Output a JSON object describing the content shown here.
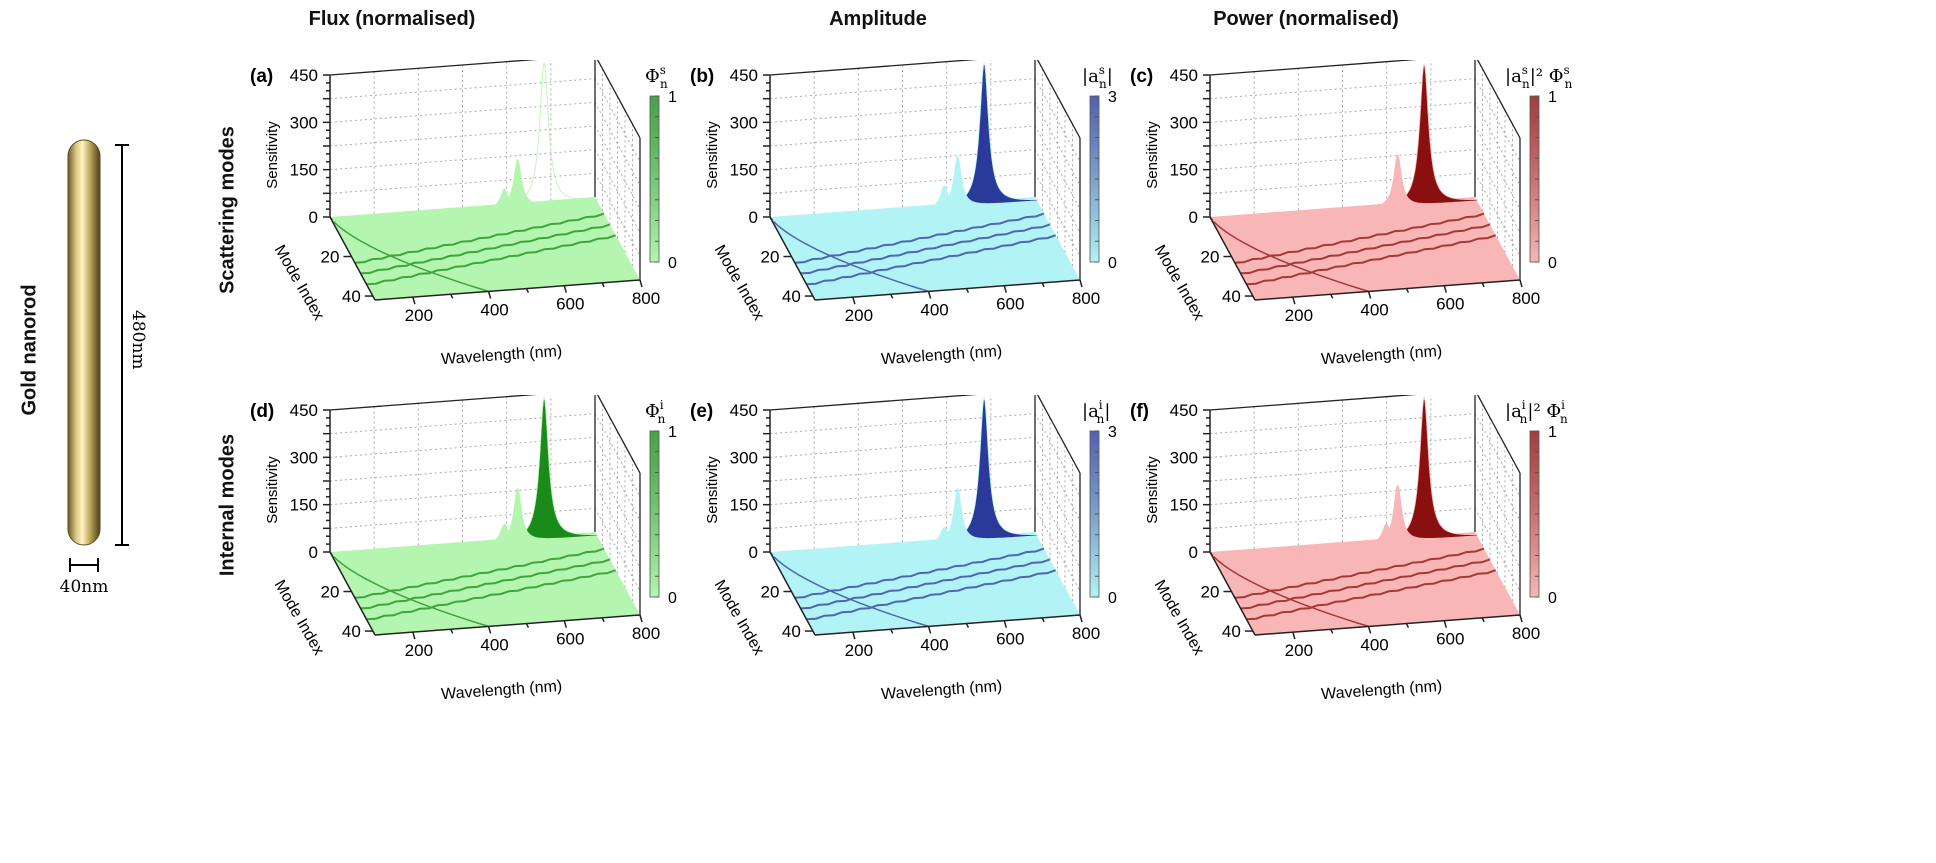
{
  "left": {
    "object_label": "Gold nanorod",
    "length_label": "480nm",
    "width_label": "40nm"
  },
  "columns": [
    "Flux (normalised)",
    "Amplitude",
    "Power (normalised)"
  ],
  "rows": [
    "Scattering modes",
    "Internal modes"
  ],
  "colors": {
    "green": {
      "surface": "#b4f5b0",
      "dark": "#1a8a1a"
    },
    "cyan": {
      "surface": "#b2f3f5",
      "dark": "#2a3a9a"
    },
    "pink": {
      "surface": "#f8b6b6",
      "dark": "#8a0f0f"
    }
  },
  "chart_data": [
    {
      "panel": "(a)",
      "type": "surface",
      "color": "green",
      "zlabel": "Sensitivity",
      "ylabel": "Mode Index",
      "xlabel": "Wavelength (nm)",
      "x_ticks": [
        "200",
        "400",
        "600",
        "800"
      ],
      "y_ticks": [
        "20",
        "40"
      ],
      "z_ticks": [
        "0",
        "150",
        "300",
        "450"
      ],
      "zlim": [
        0,
        450
      ],
      "xlim": [
        100,
        800
      ],
      "ylim": [
        0,
        42
      ],
      "grid": true,
      "colorbar": {
        "base": "Φ",
        "sub": "n",
        "sup": "s",
        "prefix": "",
        "mid": "",
        "ticks": [
          "0",
          "1"
        ]
      },
      "peaks": [
        {
          "wavelength": 660,
          "mode": 2,
          "sensitivity": 450
        },
        {
          "wavelength": 590,
          "mode": 2,
          "sensitivity": 150
        },
        {
          "wavelength": 555,
          "mode": 2,
          "sensitivity": 60
        }
      ]
    },
    {
      "panel": "(b)",
      "type": "surface",
      "color": "cyan",
      "zlabel": "Sensitivity",
      "ylabel": "Mode Index",
      "xlabel": "Wavelength (nm)",
      "x_ticks": [
        "200",
        "400",
        "600",
        "800"
      ],
      "y_ticks": [
        "20",
        "40"
      ],
      "z_ticks": [
        "0",
        "150",
        "300",
        "450"
      ],
      "zlim": [
        0,
        450
      ],
      "xlim": [
        100,
        800
      ],
      "ylim": [
        0,
        42
      ],
      "grid": true,
      "colorbar": {
        "base": "|a",
        "sub": "n",
        "sup": "s",
        "prefix": "",
        "mid": "|",
        "ticks": [
          "0",
          "3"
        ]
      },
      "peaks": [
        {
          "wavelength": 660,
          "mode": 2,
          "sensitivity": 450
        },
        {
          "wavelength": 590,
          "mode": 2,
          "sensitivity": 160
        },
        {
          "wavelength": 555,
          "mode": 2,
          "sensitivity": 70
        }
      ]
    },
    {
      "panel": "(c)",
      "type": "surface",
      "color": "pink",
      "zlabel": "Sensitivity",
      "ylabel": "Mode Index",
      "xlabel": "Wavelength (nm)",
      "x_ticks": [
        "200",
        "400",
        "600",
        "800"
      ],
      "y_ticks": [
        "20",
        "40"
      ],
      "z_ticks": [
        "0",
        "150",
        "300",
        "450"
      ],
      "zlim": [
        0,
        450
      ],
      "xlim": [
        100,
        800
      ],
      "ylim": [
        0,
        42
      ],
      "grid": true,
      "colorbar": {
        "base": "|a",
        "sub": "n",
        "sup": "s",
        "prefix": "",
        "mid": "|² Φ",
        "sub2": "n",
        "sup2": "s",
        "ticks": [
          "0",
          "1"
        ]
      },
      "peaks": [
        {
          "wavelength": 660,
          "mode": 2,
          "sensitivity": 445
        },
        {
          "wavelength": 590,
          "mode": 2,
          "sensitivity": 165
        }
      ]
    },
    {
      "panel": "(d)",
      "type": "surface",
      "color": "green",
      "zlabel": "Sensitivity",
      "ylabel": "Mode Index",
      "xlabel": "Wavelength (nm)",
      "x_ticks": [
        "200",
        "400",
        "600",
        "800"
      ],
      "y_ticks": [
        "20",
        "40"
      ],
      "z_ticks": [
        "0",
        "150",
        "300",
        "450"
      ],
      "zlim": [
        0,
        450
      ],
      "xlim": [
        100,
        800
      ],
      "ylim": [
        0,
        42
      ],
      "grid": true,
      "colorbar": {
        "base": "Φ",
        "sub": "n",
        "sup": "i",
        "prefix": "",
        "mid": "",
        "ticks": [
          "0",
          "1"
        ]
      },
      "peaks": [
        {
          "wavelength": 660,
          "mode": 2,
          "sensitivity": 450
        },
        {
          "wavelength": 590,
          "mode": 2,
          "sensitivity": 170
        },
        {
          "wavelength": 555,
          "mode": 2,
          "sensitivity": 60
        }
      ]
    },
    {
      "panel": "(e)",
      "type": "surface",
      "color": "cyan",
      "zlabel": "Sensitivity",
      "ylabel": "Mode Index",
      "xlabel": "Wavelength (nm)",
      "x_ticks": [
        "200",
        "400",
        "600",
        "800"
      ],
      "y_ticks": [
        "20",
        "40"
      ],
      "z_ticks": [
        "0",
        "150",
        "300",
        "450"
      ],
      "zlim": [
        0,
        450
      ],
      "xlim": [
        100,
        800
      ],
      "ylim": [
        0,
        42
      ],
      "grid": true,
      "colorbar": {
        "base": "|a",
        "sub": "n",
        "sup": "i",
        "prefix": "",
        "mid": "|",
        "ticks": [
          "0",
          "3"
        ]
      },
      "peaks": [
        {
          "wavelength": 660,
          "mode": 2,
          "sensitivity": 450
        },
        {
          "wavelength": 590,
          "mode": 2,
          "sensitivity": 170
        },
        {
          "wavelength": 555,
          "mode": 2,
          "sensitivity": 50
        }
      ]
    },
    {
      "panel": "(f)",
      "type": "surface",
      "color": "pink",
      "zlabel": "Sensitivity",
      "ylabel": "Mode Index",
      "xlabel": "Wavelength (nm)",
      "x_ticks": [
        "200",
        "400",
        "600",
        "800"
      ],
      "y_ticks": [
        "20",
        "40"
      ],
      "z_ticks": [
        "0",
        "150",
        "300",
        "450"
      ],
      "zlim": [
        0,
        450
      ],
      "xlim": [
        100,
        800
      ],
      "ylim": [
        0,
        42
      ],
      "grid": true,
      "colorbar": {
        "base": "|a",
        "sub": "n",
        "sup": "i",
        "prefix": "",
        "mid": "|² Φ",
        "sub2": "n",
        "sup2": "i",
        "ticks": [
          "0",
          "1"
        ]
      },
      "peaks": [
        {
          "wavelength": 660,
          "mode": 2,
          "sensitivity": 450
        },
        {
          "wavelength": 590,
          "mode": 2,
          "sensitivity": 180
        },
        {
          "wavelength": 560,
          "mode": 2,
          "sensitivity": 60
        }
      ]
    }
  ]
}
